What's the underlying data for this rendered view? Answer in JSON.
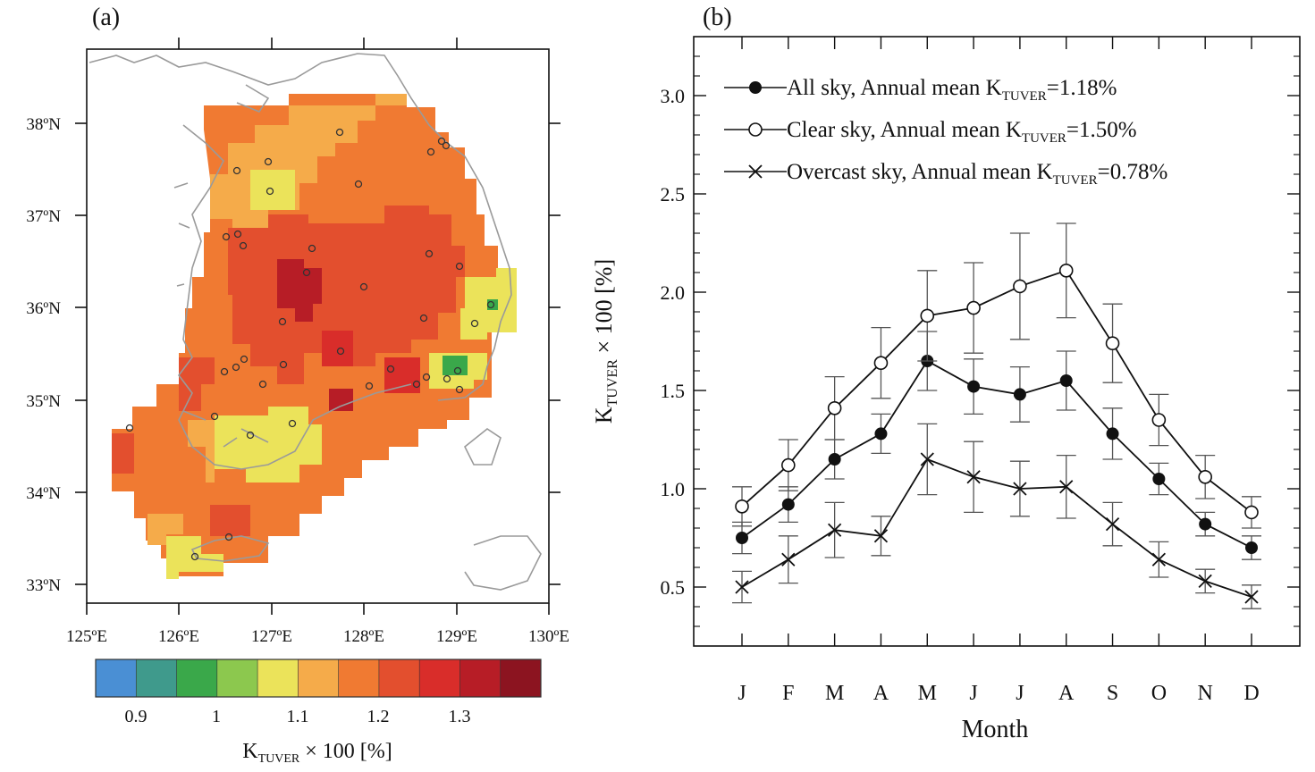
{
  "panel_a": {
    "label": "(a)",
    "lat_labels": [
      "38ºN",
      "37ºN",
      "36ºN",
      "35ºN",
      "34ºN",
      "33ºN"
    ],
    "lon_labels": [
      "125ºE",
      "126ºE",
      "127ºE",
      "128ºE",
      "129ºE",
      "130ºE"
    ],
    "colorbar": {
      "colors": [
        "#4a8fd4",
        "#3f9a8c",
        "#3aa84a",
        "#8cc84e",
        "#ebe35a",
        "#f5ab4a",
        "#f07a32",
        "#e34f2e",
        "#d92d2a",
        "#b71d26",
        "#8c1420"
      ],
      "tick_labels": [
        "0.9",
        "1",
        "1.1",
        "1.2",
        "1.3"
      ],
      "title_main": "K",
      "title_sub": "TUVER",
      "title_rest": " × 100 [%]"
    }
  },
  "chart_data": {
    "type": "line",
    "title": "(b)",
    "xlabel": "Month",
    "ylabel_main": "K",
    "ylabel_sub": "TUVER",
    "ylabel_rest": " × 100 [%]",
    "categories": [
      "J",
      "F",
      "M",
      "A",
      "M",
      "J",
      "J",
      "A",
      "S",
      "O",
      "N",
      "D"
    ],
    "yticks": [
      "0.5",
      "1.0",
      "1.5",
      "2.0",
      "2.5",
      "3.0"
    ],
    "ylim": [
      0.2,
      3.3
    ],
    "series": [
      {
        "name": "All sky",
        "marker": "filled-circle",
        "legend_prefix": "All sky, Annual mean K",
        "legend_sub": "TUVER",
        "legend_suffix": "=1.18%",
        "values": [
          0.75,
          0.92,
          1.15,
          1.28,
          1.65,
          1.52,
          1.48,
          1.55,
          1.28,
          1.05,
          0.82,
          0.7
        ],
        "error": [
          0.08,
          0.09,
          0.1,
          0.1,
          0.15,
          0.14,
          0.14,
          0.15,
          0.13,
          0.08,
          0.06,
          0.06
        ]
      },
      {
        "name": "Clear sky",
        "marker": "open-circle",
        "legend_prefix": "Clear sky, Annual mean K",
        "legend_sub": "TUVER",
        "legend_suffix": "=1.50%",
        "values": [
          0.91,
          1.12,
          1.41,
          1.64,
          1.88,
          1.92,
          2.03,
          2.11,
          1.74,
          1.35,
          1.06,
          0.88
        ],
        "error": [
          0.1,
          0.13,
          0.16,
          0.18,
          0.23,
          0.23,
          0.27,
          0.24,
          0.2,
          0.13,
          0.11,
          0.08
        ]
      },
      {
        "name": "Overcast sky",
        "marker": "cross",
        "legend_prefix": "Overcast sky, Annual mean K",
        "legend_sub": "TUVER",
        "legend_suffix": "=0.78%",
        "values": [
          0.5,
          0.64,
          0.79,
          0.76,
          1.15,
          1.06,
          1.0,
          1.01,
          0.82,
          0.64,
          0.53,
          0.45
        ],
        "error": [
          0.08,
          0.12,
          0.14,
          0.1,
          0.18,
          0.18,
          0.14,
          0.16,
          0.11,
          0.09,
          0.06,
          0.06
        ]
      }
    ]
  }
}
